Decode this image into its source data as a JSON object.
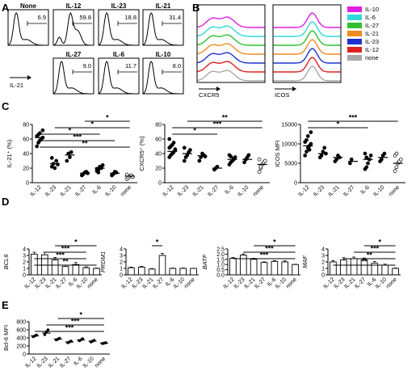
{
  "panel_labels": [
    "A",
    "B",
    "C",
    "D",
    "E"
  ],
  "chart_data": [
    {
      "panel": "A",
      "type": "histogram-gates",
      "xlabel": "IL-21",
      "histograms": [
        {
          "name": "None",
          "gate": "6.9"
        },
        {
          "name": "IL-12",
          "gate": "59.8"
        },
        {
          "name": "IL-23",
          "gate": "18.8"
        },
        {
          "name": "IL-21",
          "gate": "31.4"
        },
        {
          "name": "IL-27",
          "gate": "9.0"
        },
        {
          "name": "IL-6",
          "gate": "11.7"
        },
        {
          "name": "IL-10",
          "gate": "8.0"
        }
      ]
    },
    {
      "panel": "B",
      "type": "offset-histograms",
      "panels": [
        {
          "xlabel": "CXCR5"
        },
        {
          "xlabel": "ICOS"
        }
      ],
      "legend": [
        {
          "name": "IL-10",
          "color": "#e020e0"
        },
        {
          "name": "IL-6",
          "color": "#30d8d8"
        },
        {
          "name": "IL-27",
          "color": "#30c030"
        },
        {
          "name": "IL-21",
          "color": "#f08a20"
        },
        {
          "name": "IL-23",
          "color": "#2030d0"
        },
        {
          "name": "IL-12",
          "color": "#e02020"
        },
        {
          "name": "none",
          "color": "#a8a8a8"
        }
      ]
    },
    {
      "panel": "C",
      "type": "scatter",
      "categories": [
        "IL-12",
        "IL-23",
        "IL-21",
        "IL-27",
        "IL-6",
        "IL-10",
        "none"
      ],
      "plots": [
        {
          "ylabel": "IL-21⁺ (%)",
          "ylim": [
            0,
            80
          ],
          "yticks": [
            "0",
            "20",
            "40",
            "60",
            "80"
          ],
          "yvals": [
            0,
            20,
            40,
            60,
            80
          ],
          "means": [
            62,
            26,
            38,
            13,
            20,
            13,
            9
          ],
          "points": [
            [
              50,
              55,
              58,
              60,
              62,
              64,
              66,
              68,
              60,
              72
            ],
            [
              22,
              26,
              20,
              30,
              25,
              34
            ],
            [
              30,
              40,
              35,
              42
            ],
            [
              10,
              12,
              14,
              15,
              13
            ],
            [
              16,
              18,
              22,
              20,
              24,
              19,
              14
            ],
            [
              10,
              12,
              15,
              14
            ],
            [
              5,
              7,
              9,
              10,
              8,
              11
            ]
          ],
          "sig": [
            {
              "from": 0,
              "to": 6,
              "label": "**"
            },
            {
              "from": 0,
              "to": 5,
              "label": "***"
            },
            {
              "from": 0,
              "to": 4,
              "label": "*"
            },
            {
              "from": 1,
              "to": 6,
              "label": "*"
            },
            {
              "from": 3,
              "to": 6,
              "label": "*"
            }
          ]
        },
        {
          "ylabel": "CXCR5⁺ (%)",
          "ylim": [
            0,
            80
          ],
          "yticks": [
            "0",
            "20",
            "40",
            "60",
            "80"
          ],
          "yvals": [
            0,
            20,
            40,
            60,
            80
          ],
          "means": [
            43,
            40,
            37,
            20,
            32,
            32,
            25
          ],
          "points": [
            [
              35,
              38,
              40,
              42,
              45,
              48,
              50,
              52,
              55,
              46,
              60
            ],
            [
              30,
              35,
              38,
              42,
              45,
              48
            ],
            [
              30,
              35,
              40,
              38,
              36
            ],
            [
              18,
              20,
              22
            ],
            [
              25,
              28,
              30,
              32,
              35,
              38,
              36,
              30,
              33
            ],
            [
              28,
              32,
              35,
              38
            ],
            [
              15,
              20,
              25,
              28,
              30,
              32,
              22
            ]
          ],
          "sig": [
            {
              "from": 0,
              "to": 3,
              "label": "*"
            },
            {
              "from": 0,
              "to": 6,
              "label": "***"
            },
            {
              "from": 1,
              "to": 6,
              "label": "**"
            }
          ]
        },
        {
          "ylabel": "ICOS MFI",
          "ylim": [
            0,
            15000
          ],
          "yticks": [
            "0",
            "5000",
            "10000",
            "15000"
          ],
          "yvals": [
            0,
            5000,
            10000,
            15000
          ],
          "means": [
            9500,
            7500,
            6500,
            5500,
            6000,
            6500,
            5000
          ],
          "points": [
            [
              7000,
              8000,
              9000,
              9500,
              10000,
              10500,
              11000,
              12000,
              8500,
              13000
            ],
            [
              6500,
              7000,
              8000,
              9000,
              7500
            ],
            [
              5500,
              6000,
              7000,
              6500
            ],
            [
              5000,
              6000
            ],
            [
              3500,
              4000,
              5000,
              6000,
              7000,
              7500,
              6500
            ],
            [
              5500,
              6000,
              7000,
              7500
            ],
            [
              3000,
              4000,
              5000,
              5500,
              6000,
              7000,
              7500
            ]
          ],
          "sig": [
            {
              "from": 0,
              "to": 4,
              "label": "*"
            },
            {
              "from": 0,
              "to": 6,
              "label": "***"
            }
          ]
        }
      ]
    },
    {
      "panel": "D",
      "type": "bar",
      "categories": [
        "IL-12",
        "IL-23",
        "IL-21",
        "IL-27",
        "IL-6",
        "IL-10",
        "none"
      ],
      "plots": [
        {
          "ylabel": "BCL6",
          "ylim": [
            0,
            4
          ],
          "yticks": [
            "0",
            "1",
            "2",
            "3",
            "4"
          ],
          "yvals": [
            0,
            1,
            2,
            3,
            4
          ],
          "values": [
            3.2,
            3.1,
            2.3,
            1.3,
            1.6,
            1.1,
            1.0
          ],
          "errors": [
            0.3,
            0.4,
            0.4,
            0.2,
            0.3,
            0.15,
            0.05
          ],
          "sig": [
            {
              "from": 0,
              "to": 6,
              "label": "**"
            },
            {
              "from": 0,
              "to": 5,
              "label": "***"
            },
            {
              "from": 1,
              "to": 5,
              "label": "***"
            },
            {
              "from": 2,
              "to": 6,
              "label": "*"
            }
          ]
        },
        {
          "ylabel": "PRDM1",
          "ylim": [
            0,
            4
          ],
          "yticks": [
            "0",
            "1",
            "2",
            "3",
            "4"
          ],
          "yvals": [
            0,
            1,
            2,
            3,
            4
          ],
          "values": [
            1.1,
            1.2,
            0.9,
            3.0,
            1.0,
            1.0,
            1.0
          ],
          "errors": [
            0.1,
            0.1,
            0.05,
            0.3,
            0.05,
            0.05,
            0.02
          ],
          "sig": [
            {
              "from": 2,
              "to": 3,
              "label": "*"
            }
          ]
        },
        {
          "ylabel": "BATF",
          "ylim": [
            0,
            2.5
          ],
          "yticks": [
            "0.0",
            "0.5",
            "1.0",
            "1.5",
            "2.0",
            "2.5"
          ],
          "yvals": [
            0,
            0.5,
            1,
            1.5,
            2,
            2.5
          ],
          "values": [
            1.6,
            1.9,
            1.5,
            1.2,
            1.3,
            1.25,
            1.0
          ],
          "errors": [
            0.08,
            0.12,
            0.1,
            0.05,
            0.08,
            0.1,
            0.02
          ],
          "sig": [
            {
              "from": 0,
              "to": 6,
              "label": "***"
            },
            {
              "from": 1,
              "to": 6,
              "label": "***"
            },
            {
              "from": 2,
              "to": 6,
              "label": "*"
            }
          ]
        },
        {
          "ylabel": "MAF",
          "ylim": [
            0,
            4
          ],
          "yticks": [
            "0",
            "1",
            "2",
            "3",
            "4"
          ],
          "yvals": [
            0,
            1,
            2,
            3,
            4
          ],
          "values": [
            2.0,
            2.3,
            2.5,
            2.3,
            1.8,
            1.5,
            1.0
          ],
          "errors": [
            0.2,
            0.35,
            0.25,
            0.3,
            0.25,
            0.15,
            0.05
          ],
          "sig": [
            {
              "from": 0,
              "to": 6,
              "label": "**"
            },
            {
              "from": 1,
              "to": 6,
              "label": "**"
            },
            {
              "from": 2,
              "to": 6,
              "label": "***"
            },
            {
              "from": 3,
              "to": 6,
              "label": "*"
            }
          ]
        }
      ]
    },
    {
      "panel": "E",
      "type": "scatter",
      "categories": [
        "IL-12",
        "IL-23",
        "IL-21",
        "IL-27",
        "IL-6",
        "IL-10",
        "none"
      ],
      "plots": [
        {
          "ylabel": "Bcl-6 MFI",
          "ylim": [
            0,
            800
          ],
          "yticks": [
            "0",
            "200",
            "400",
            "600",
            "800"
          ],
          "yvals": [
            0,
            200,
            400,
            600,
            800
          ],
          "means": [
            450,
            520,
            370,
            300,
            350,
            320,
            270
          ],
          "points": [
            [
              430,
              450,
              470
            ],
            [
              480,
              550,
              600
            ],
            [
              350,
              370,
              390
            ],
            [
              280,
              300,
              320
            ],
            [
              330,
              350,
              380
            ],
            [
              300,
              320,
              340
            ],
            [
              260,
              270,
              280
            ]
          ],
          "sig": [
            {
              "from": 0,
              "to": 6,
              "label": "***"
            },
            {
              "from": 1,
              "to": 6,
              "label": "***"
            },
            {
              "from": 2,
              "to": 6,
              "label": "*"
            }
          ]
        }
      ]
    }
  ]
}
